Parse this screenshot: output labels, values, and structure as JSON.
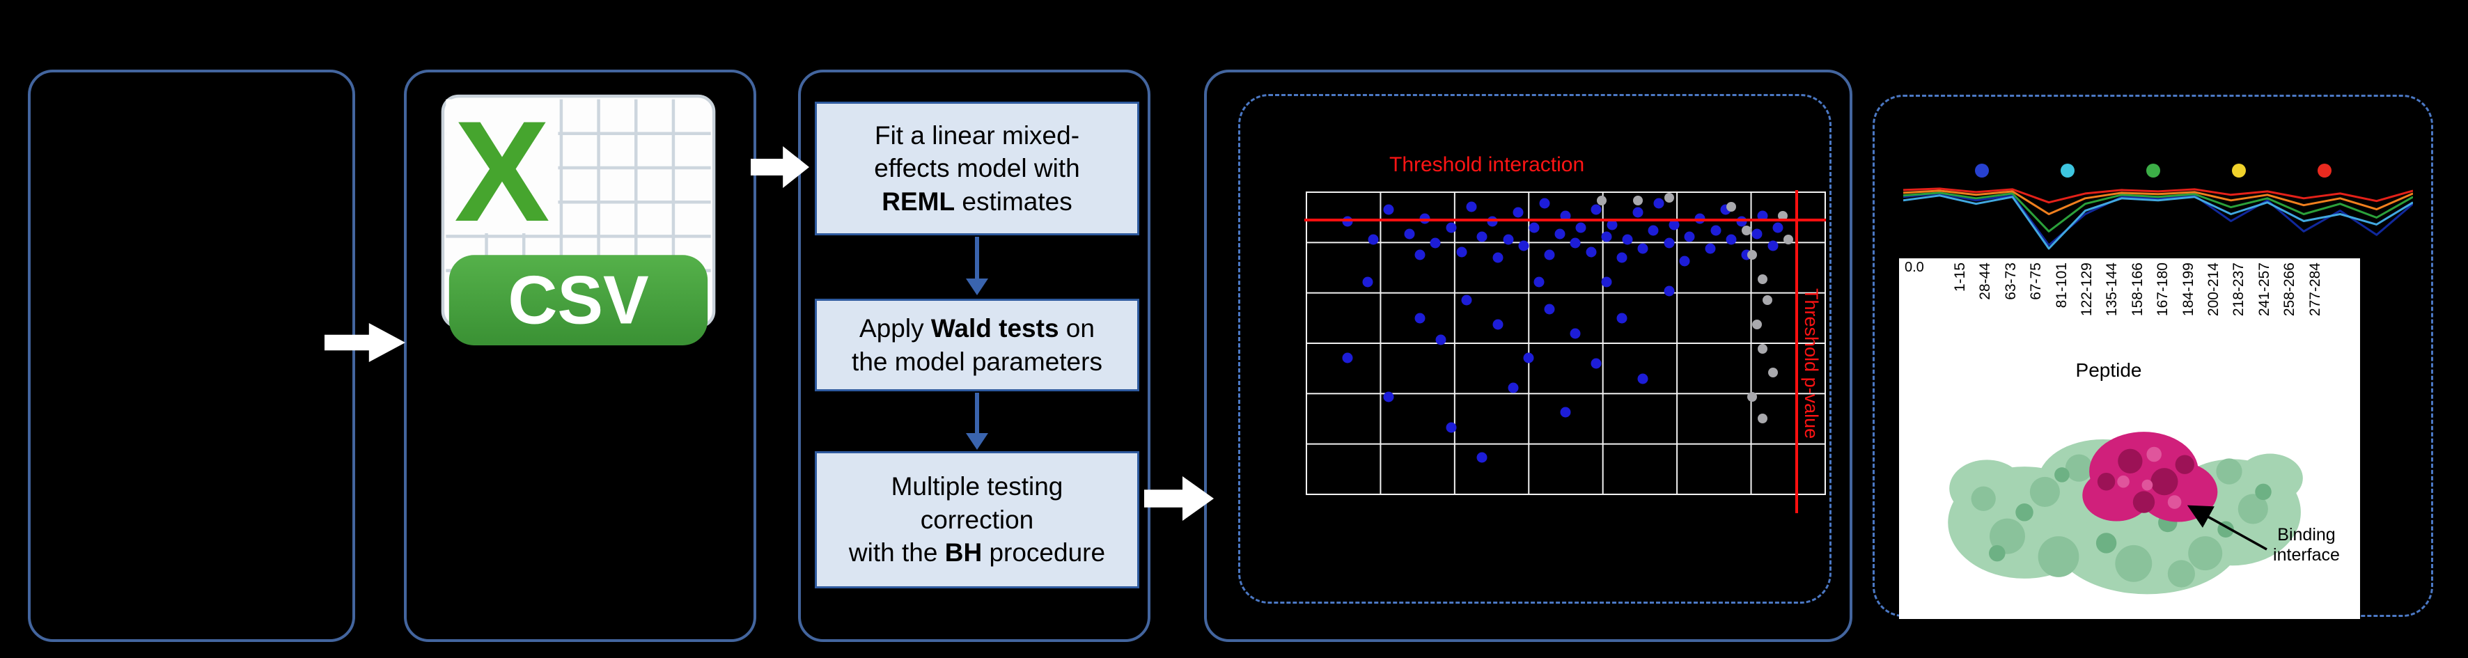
{
  "figure": {
    "csv_icon": {
      "x_glyph": "X",
      "label": "CSV"
    },
    "steps": [
      {
        "pre": "Fit a linear mixed-\neffects model with\n",
        "bold": "REML",
        "post": " estimates"
      },
      {
        "pre": "Apply ",
        "bold": "Wald tests",
        "post": " on\nthe model parameters"
      },
      {
        "pre": "Multiple testing\ncorrection\nwith the ",
        "bold": "BH",
        "post": " procedure"
      }
    ],
    "protein": {
      "annotation": "Binding interface"
    },
    "colors": {
      "panel_border": "#43659e",
      "dashed_border": "#4b78c4",
      "step_box_fill": "#dbe5f2",
      "step_box_border": "#2e5a9e",
      "threshold_red": "#ff0f0f"
    }
  },
  "chart_data": [
    {
      "type": "scatter",
      "title": "Threshold interaction",
      "side_label": "Threshold p-value",
      "xlabel": "",
      "ylabel": "",
      "grid": {
        "cols": 7,
        "rows": 6,
        "line_color": "#f2f2f2",
        "on": true
      },
      "threshold_y_pct": 8.9,
      "threshold_x_pct": 94.3,
      "point_colors": {
        "significant": "#1d1dd8",
        "nonsignificant": "#a9a9ad"
      },
      "points_blue": [
        [
          8,
          10
        ],
        [
          13,
          16
        ],
        [
          16,
          6
        ],
        [
          20,
          14
        ],
        [
          22,
          21
        ],
        [
          23,
          9
        ],
        [
          25,
          17
        ],
        [
          28,
          12
        ],
        [
          30,
          20
        ],
        [
          32,
          5
        ],
        [
          34,
          15
        ],
        [
          36,
          10
        ],
        [
          37,
          22
        ],
        [
          39,
          16
        ],
        [
          41,
          7
        ],
        [
          42,
          18
        ],
        [
          44,
          12
        ],
        [
          46,
          4
        ],
        [
          47,
          21
        ],
        [
          49,
          14
        ],
        [
          50,
          8
        ],
        [
          52,
          17
        ],
        [
          53,
          12
        ],
        [
          55,
          20
        ],
        [
          56,
          6
        ],
        [
          58,
          15
        ],
        [
          59,
          11
        ],
        [
          61,
          22
        ],
        [
          62,
          16
        ],
        [
          64,
          7
        ],
        [
          65,
          19
        ],
        [
          67,
          13
        ],
        [
          70,
          17
        ],
        [
          71,
          11
        ],
        [
          73,
          23
        ],
        [
          74,
          15
        ],
        [
          76,
          9
        ],
        [
          78,
          19
        ],
        [
          79,
          13
        ],
        [
          81,
          6
        ],
        [
          82,
          16
        ],
        [
          84,
          10
        ],
        [
          85,
          21
        ],
        [
          87,
          14
        ],
        [
          88,
          8
        ],
        [
          90,
          18
        ],
        [
          91,
          12
        ],
        [
          68,
          4
        ],
        [
          22,
          42
        ],
        [
          26,
          49
        ],
        [
          31,
          36
        ],
        [
          37,
          44
        ],
        [
          43,
          55
        ],
        [
          47,
          39
        ],
        [
          52,
          47
        ],
        [
          56,
          57
        ],
        [
          61,
          42
        ],
        [
          16,
          68
        ],
        [
          28,
          78
        ],
        [
          40,
          65
        ],
        [
          50,
          73
        ],
        [
          34,
          88
        ],
        [
          12,
          30
        ],
        [
          45,
          30
        ],
        [
          58,
          30
        ],
        [
          70,
          33
        ],
        [
          8,
          55
        ],
        [
          65,
          62
        ]
      ],
      "points_gray": [
        [
          82,
          5
        ],
        [
          85,
          13
        ],
        [
          86,
          21
        ],
        [
          88,
          29
        ],
        [
          89,
          36
        ],
        [
          87,
          44
        ],
        [
          88,
          52
        ],
        [
          90,
          60
        ],
        [
          86,
          68
        ],
        [
          88,
          75
        ],
        [
          64,
          3
        ],
        [
          70,
          2
        ],
        [
          57,
          3
        ],
        [
          92,
          8
        ],
        [
          93,
          16
        ]
      ]
    },
    {
      "type": "line",
      "categories": [
        "1-15",
        "28-44",
        "63-73",
        "67-75",
        "81-101",
        "122-129",
        "135-144",
        "158-166",
        "167-180",
        "184-199",
        "200-214",
        "218-237",
        "241-257",
        "258-266",
        "277-284"
      ],
      "xlabel": "Peptide",
      "ytick": "0.0",
      "legend_colors": [
        "#2741d0",
        "#3ec6e0",
        "#3cae47",
        "#f0d22b",
        "#ea2a1f"
      ],
      "series": [
        {
          "name": "navy",
          "color": "#10289c",
          "values": [
            0.8,
            0.85,
            0.75,
            0.82,
            0.1,
            0.55,
            0.8,
            0.78,
            0.82,
            0.45,
            0.75,
            0.3,
            0.6,
            0.25,
            0.7
          ]
        },
        {
          "name": "cyan",
          "color": "#41a8e0",
          "values": [
            0.75,
            0.82,
            0.7,
            0.8,
            0.05,
            0.6,
            0.78,
            0.75,
            0.8,
            0.55,
            0.72,
            0.45,
            0.55,
            0.4,
            0.72
          ]
        },
        {
          "name": "green",
          "color": "#2ba03a",
          "values": [
            0.82,
            0.86,
            0.78,
            0.85,
            0.3,
            0.7,
            0.83,
            0.8,
            0.84,
            0.65,
            0.78,
            0.55,
            0.7,
            0.5,
            0.8
          ]
        },
        {
          "name": "orange",
          "color": "#f07f1e",
          "values": [
            0.86,
            0.89,
            0.83,
            0.88,
            0.55,
            0.78,
            0.86,
            0.84,
            0.87,
            0.75,
            0.83,
            0.68,
            0.78,
            0.62,
            0.85
          ]
        },
        {
          "name": "red",
          "color": "#e32119",
          "values": [
            0.9,
            0.92,
            0.87,
            0.91,
            0.72,
            0.85,
            0.9,
            0.88,
            0.91,
            0.83,
            0.88,
            0.78,
            0.85,
            0.74,
            0.89
          ]
        }
      ]
    }
  ]
}
